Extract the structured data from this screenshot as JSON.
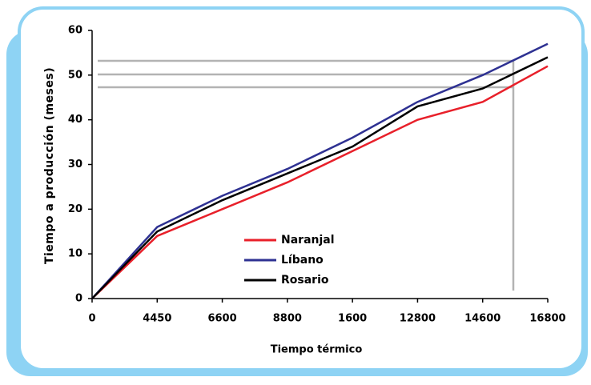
{
  "chart_data": {
    "type": "line",
    "x_label": "Tiempo térmico",
    "y_label": "Tiempo a producción (meses)",
    "categories": [
      "0",
      "4450",
      "6600",
      "8800",
      "1600",
      "12800",
      "14600",
      "16800"
    ],
    "series": [
      {
        "name": "Naranjal",
        "color": "#e8202a",
        "values": [
          0,
          14,
          20,
          26,
          33,
          40,
          44,
          52
        ]
      },
      {
        "name": "Líbano",
        "color": "#2e3192",
        "values": [
          0,
          16,
          23,
          29,
          36,
          44,
          50,
          57
        ]
      },
      {
        "name": "Rosario",
        "color": "#000000",
        "values": [
          0,
          15,
          22,
          28,
          34,
          43,
          47,
          54
        ]
      }
    ],
    "ylim": [
      0,
      60
    ],
    "yticks": [
      0,
      10,
      20,
      30,
      40,
      50,
      60
    ]
  }
}
